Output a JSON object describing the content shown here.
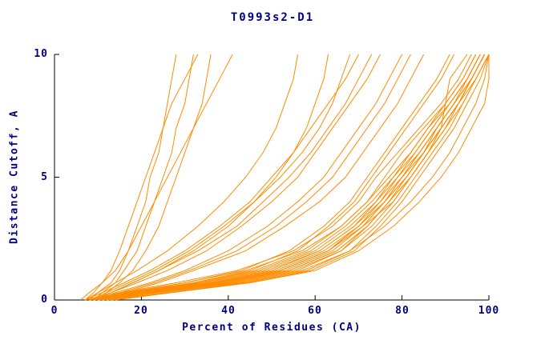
{
  "chart_data": {
    "type": "line",
    "title": "T0993s2-D1",
    "xlabel": "Percent of Residues (CA)",
    "ylabel": "Distance Cutoff, A",
    "xlim": [
      0,
      100
    ],
    "ylim": [
      0,
      10
    ],
    "xticks": [
      0,
      20,
      40,
      60,
      80,
      100
    ],
    "yticks": [
      0,
      5,
      10
    ],
    "grid": false,
    "legend": "none",
    "line_color": "#FF8C00",
    "axis_color": "#000000",
    "text_color": "#000080",
    "y_levels": [
      0,
      0.3,
      0.7,
      1.2,
      2,
      3,
      4,
      5,
      6,
      7,
      8,
      9,
      10
    ],
    "series": [
      [
        10,
        20,
        38,
        52,
        63,
        70,
        75,
        79,
        83,
        87,
        91,
        95,
        98
      ],
      [
        8,
        17,
        32,
        46,
        58,
        66,
        72,
        76,
        80,
        85,
        90,
        94,
        97
      ],
      [
        12,
        24,
        42,
        56,
        66,
        73,
        78,
        82,
        86,
        90,
        93,
        96,
        99
      ],
      [
        9,
        19,
        36,
        50,
        61,
        69,
        74,
        78,
        82,
        86,
        90,
        94,
        97
      ],
      [
        11,
        22,
        40,
        54,
        65,
        72,
        77,
        81,
        85,
        88,
        92,
        96,
        99
      ],
      [
        7,
        15,
        28,
        42,
        55,
        64,
        70,
        74,
        79,
        84,
        89,
        93,
        96
      ],
      [
        13,
        26,
        44,
        58,
        68,
        74,
        79,
        83,
        87,
        91,
        94,
        97,
        100
      ],
      [
        10,
        21,
        39,
        53,
        64,
        71,
        76,
        80,
        84,
        88,
        92,
        95,
        98
      ],
      [
        8,
        18,
        35,
        49,
        61,
        69,
        75,
        80,
        84,
        88,
        92,
        96,
        99
      ],
      [
        12,
        23,
        41,
        55,
        66,
        72,
        77,
        82,
        86,
        90,
        94,
        97,
        100
      ],
      [
        9,
        18,
        33,
        47,
        59,
        67,
        73,
        78,
        83,
        87,
        91,
        95,
        98
      ],
      [
        11,
        22,
        39,
        54,
        65,
        72,
        77,
        82,
        86,
        89,
        93,
        96,
        99
      ],
      [
        10,
        20,
        37,
        52,
        63,
        70,
        76,
        81,
        85,
        89,
        93,
        96,
        99
      ],
      [
        8,
        16,
        30,
        44,
        57,
        66,
        72,
        77,
        82,
        86,
        91,
        95,
        98
      ],
      [
        14,
        27,
        45,
        59,
        69,
        75,
        80,
        84,
        88,
        92,
        95,
        98,
        100
      ],
      [
        9,
        19,
        36,
        51,
        62,
        70,
        76,
        81,
        85,
        89,
        93,
        97,
        100
      ],
      [
        11,
        21,
        38,
        52,
        63,
        71,
        76,
        80,
        85,
        89,
        93,
        96,
        99
      ],
      [
        10,
        19,
        34,
        48,
        60,
        68,
        74,
        79,
        84,
        88,
        92,
        96,
        99
      ],
      [
        9,
        17,
        30,
        43,
        54,
        62,
        68,
        72,
        76,
        80,
        84,
        88,
        91
      ],
      [
        10,
        18,
        32,
        45,
        56,
        63,
        69,
        73,
        77,
        81,
        85,
        89,
        92
      ],
      [
        10,
        20,
        37,
        52,
        63,
        71,
        78,
        82,
        86,
        89,
        90,
        91,
        95
      ],
      [
        12,
        24,
        43,
        57,
        68,
        76,
        82,
        87,
        91,
        94,
        97,
        99,
        100
      ],
      [
        13,
        26,
        45,
        60,
        70,
        78,
        84,
        89,
        93,
        96,
        99,
        100,
        100
      ],
      [
        9,
        14,
        22,
        30,
        40,
        49,
        56,
        62,
        66,
        70,
        74,
        77,
        80
      ],
      [
        8,
        13,
        19,
        26,
        35,
        43,
        50,
        56,
        60,
        64,
        68,
        72,
        75
      ],
      [
        10,
        15,
        23,
        31,
        42,
        51,
        58,
        64,
        68,
        72,
        76,
        79,
        82
      ],
      [
        7,
        11,
        16,
        22,
        30,
        38,
        45,
        50,
        55,
        59,
        63,
        67,
        70
      ],
      [
        9,
        13,
        18,
        24,
        33,
        42,
        48,
        54,
        59,
        63,
        67,
        70,
        73
      ],
      [
        11,
        16,
        24,
        32,
        44,
        53,
        61,
        67,
        71,
        75,
        79,
        82,
        85
      ],
      [
        8,
        12,
        17,
        23,
        31,
        39,
        46,
        52,
        57,
        61,
        64,
        66,
        68
      ],
      [
        7,
        10,
        14,
        19,
        26,
        33,
        39,
        44,
        48,
        51,
        53,
        55,
        56
      ],
      [
        9,
        13,
        18,
        24,
        32,
        40,
        46,
        51,
        55,
        58,
        60,
        62,
        63
      ],
      [
        8,
        10,
        13,
        15,
        17,
        19,
        21,
        22,
        24,
        25,
        26,
        27,
        28
      ],
      [
        9,
        11,
        14,
        16,
        19,
        21,
        23,
        25,
        27,
        28,
        30,
        31,
        32
      ],
      [
        10,
        12,
        15,
        18,
        21,
        24,
        26,
        28,
        30,
        32,
        34,
        35,
        36
      ],
      [
        7,
        9,
        11,
        13,
        15,
        17,
        19,
        21,
        23,
        25,
        27,
        30,
        33
      ],
      [
        6,
        8,
        11,
        14,
        17,
        20,
        23,
        26,
        29,
        32,
        35,
        38,
        41
      ]
    ]
  }
}
